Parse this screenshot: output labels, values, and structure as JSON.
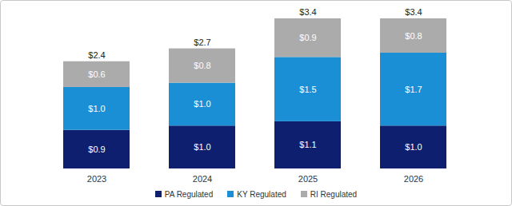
{
  "chart_data": {
    "type": "bar",
    "stacked": true,
    "data_labels": true,
    "tick_labels": "x",
    "legend": "bottom",
    "categories": [
      "2023",
      "2024",
      "2025",
      "2026"
    ],
    "ylim": [
      0,
      3.5
    ],
    "series": [
      {
        "name": "PA Regulated",
        "color": "#0d1f6e",
        "values": [
          0.9,
          1.0,
          1.1,
          1.0
        ],
        "value_labels": [
          "$0.9",
          "$1.0",
          "$1.1",
          "$1.0"
        ]
      },
      {
        "name": "KY Regulated",
        "color": "#1b8fd6",
        "values": [
          1.0,
          1.0,
          1.5,
          1.7
        ],
        "value_labels": [
          "$1.0",
          "$1.0",
          "$1.5",
          "$1.7"
        ]
      },
      {
        "name": "RI Regulated",
        "color": "#ababab",
        "values": [
          0.6,
          0.8,
          0.9,
          0.8
        ],
        "value_labels": [
          "$0.6",
          "$0.8",
          "$0.9",
          "$0.8"
        ]
      }
    ],
    "totals": [
      2.4,
      2.7,
      3.4,
      3.4
    ],
    "total_labels": [
      "$2.4",
      "$2.7",
      "$3.4",
      "$3.4"
    ]
  }
}
